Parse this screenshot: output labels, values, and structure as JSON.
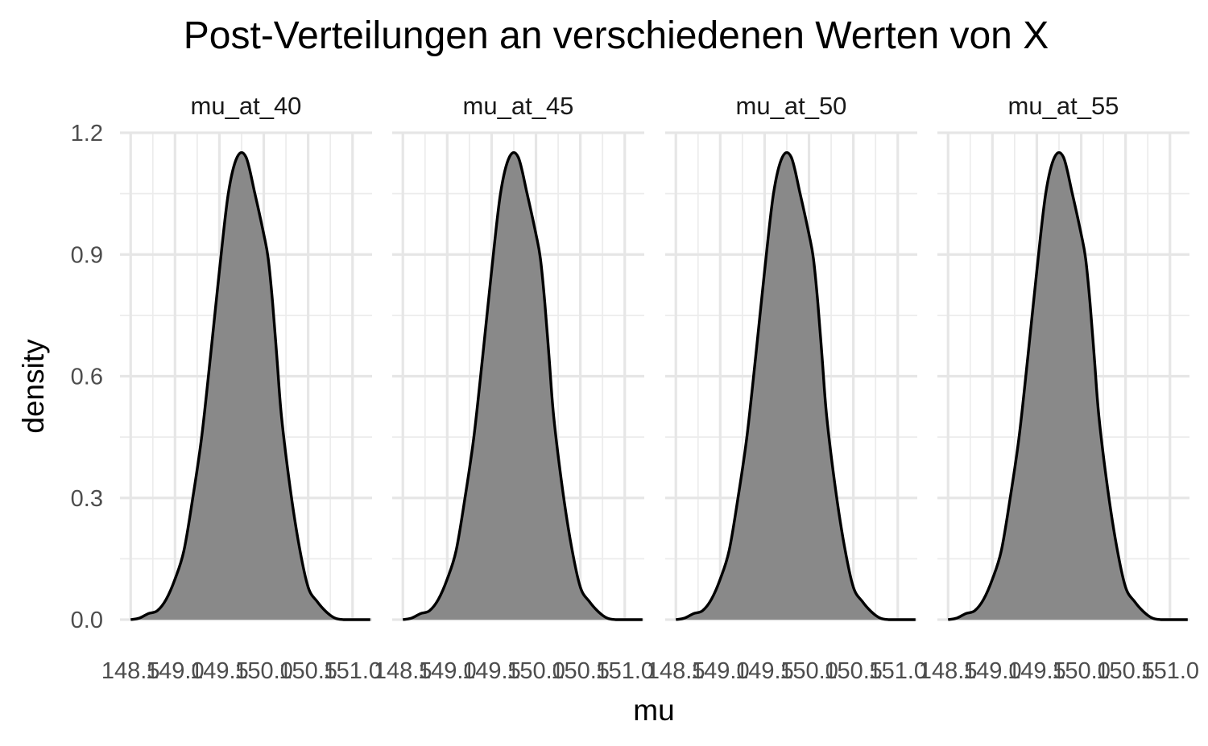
{
  "chart_data": {
    "type": "area",
    "title": "Post-Verteilungen an verschiedenen Werten von X",
    "xlabel": "mu",
    "ylabel": "density",
    "xlim": [
      148.38,
      151.22
    ],
    "ylim": [
      0,
      1.2
    ],
    "x_ticks": [
      148.5,
      149.0,
      149.5,
      150.0,
      150.5,
      151.0
    ],
    "x_tick_labels": [
      "148.5",
      "149.0",
      "149.5",
      "150.0",
      "150.5",
      "151.0"
    ],
    "y_ticks": [
      0,
      0.3,
      0.6,
      0.9,
      1.2
    ],
    "y_tick_labels": [
      "0.0",
      "0.3",
      "0.6",
      "0.9",
      "1.2"
    ],
    "grid": true,
    "fill_color": "#898989",
    "line_color": "#000000",
    "panels": [
      {
        "name": "mu_at_40",
        "x": [
          148.5,
          148.6,
          148.7,
          148.8,
          148.9,
          149.0,
          149.1,
          149.2,
          149.3,
          149.4,
          149.5,
          149.6,
          149.7,
          149.8,
          149.9,
          150.0,
          150.05,
          150.1,
          150.15,
          150.2,
          150.3,
          150.4,
          150.5,
          150.6,
          150.7,
          150.8,
          150.9,
          151.0,
          151.1,
          151.2
        ],
        "y": [
          0.0,
          0.004,
          0.015,
          0.022,
          0.05,
          0.1,
          0.17,
          0.3,
          0.45,
          0.65,
          0.86,
          1.05,
          1.14,
          1.14,
          1.05,
          0.95,
          0.89,
          0.78,
          0.64,
          0.5,
          0.32,
          0.18,
          0.08,
          0.045,
          0.02,
          0.004,
          0.0,
          0.0,
          0.0,
          0.0
        ]
      },
      {
        "name": "mu_at_45",
        "x": [
          148.5,
          148.6,
          148.7,
          148.8,
          148.9,
          149.0,
          149.1,
          149.2,
          149.3,
          149.4,
          149.5,
          149.6,
          149.7,
          149.8,
          149.9,
          150.0,
          150.05,
          150.1,
          150.15,
          150.2,
          150.3,
          150.4,
          150.5,
          150.6,
          150.7,
          150.8,
          150.9,
          151.0,
          151.1,
          151.2
        ],
        "y": [
          0.0,
          0.004,
          0.015,
          0.022,
          0.05,
          0.1,
          0.17,
          0.3,
          0.45,
          0.65,
          0.86,
          1.05,
          1.14,
          1.14,
          1.05,
          0.95,
          0.89,
          0.78,
          0.64,
          0.5,
          0.32,
          0.18,
          0.08,
          0.045,
          0.02,
          0.004,
          0.0,
          0.0,
          0.0,
          0.0
        ]
      },
      {
        "name": "mu_at_50",
        "x": [
          148.5,
          148.6,
          148.7,
          148.8,
          148.9,
          149.0,
          149.1,
          149.2,
          149.3,
          149.4,
          149.5,
          149.6,
          149.7,
          149.8,
          149.9,
          150.0,
          150.05,
          150.1,
          150.15,
          150.2,
          150.3,
          150.4,
          150.5,
          150.6,
          150.7,
          150.8,
          150.9,
          151.0,
          151.1,
          151.2
        ],
        "y": [
          0.0,
          0.004,
          0.015,
          0.022,
          0.05,
          0.1,
          0.17,
          0.3,
          0.45,
          0.65,
          0.86,
          1.05,
          1.14,
          1.14,
          1.05,
          0.95,
          0.89,
          0.78,
          0.64,
          0.5,
          0.32,
          0.18,
          0.08,
          0.045,
          0.02,
          0.004,
          0.0,
          0.0,
          0.0,
          0.0
        ]
      },
      {
        "name": "mu_at_55",
        "x": [
          148.5,
          148.6,
          148.7,
          148.8,
          148.9,
          149.0,
          149.1,
          149.2,
          149.3,
          149.4,
          149.5,
          149.6,
          149.7,
          149.8,
          149.9,
          150.0,
          150.05,
          150.1,
          150.15,
          150.2,
          150.3,
          150.4,
          150.5,
          150.6,
          150.7,
          150.8,
          150.9,
          151.0,
          151.1,
          151.2
        ],
        "y": [
          0.0,
          0.004,
          0.015,
          0.022,
          0.05,
          0.1,
          0.17,
          0.3,
          0.45,
          0.65,
          0.86,
          1.05,
          1.14,
          1.14,
          1.05,
          0.95,
          0.89,
          0.78,
          0.64,
          0.5,
          0.32,
          0.18,
          0.08,
          0.045,
          0.02,
          0.004,
          0.0,
          0.0,
          0.0,
          0.0
        ]
      }
    ]
  }
}
